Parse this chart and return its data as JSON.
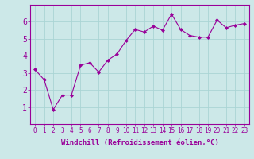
{
  "x": [
    0,
    1,
    2,
    3,
    4,
    5,
    6,
    7,
    8,
    9,
    10,
    11,
    12,
    13,
    14,
    15,
    16,
    17,
    18,
    19,
    20,
    21,
    22,
    23
  ],
  "y": [
    3.2,
    2.6,
    0.85,
    1.7,
    1.7,
    3.45,
    3.6,
    3.05,
    3.75,
    4.1,
    4.9,
    5.55,
    5.4,
    5.75,
    5.5,
    6.45,
    5.55,
    5.2,
    5.1,
    5.1,
    6.1,
    5.65,
    5.8,
    5.9
  ],
  "line_color": "#990099",
  "marker": "D",
  "marker_size": 2,
  "bg_color": "#cce8e8",
  "grid_color": "#aad4d4",
  "xlabel": "Windchill (Refroidissement éolien,°C)",
  "ylim": [
    0,
    7
  ],
  "xlim": [
    -0.5,
    23.5
  ],
  "yticks": [
    1,
    2,
    3,
    4,
    5,
    6
  ],
  "xticks": [
    0,
    1,
    2,
    3,
    4,
    5,
    6,
    7,
    8,
    9,
    10,
    11,
    12,
    13,
    14,
    15,
    16,
    17,
    18,
    19,
    20,
    21,
    22,
    23
  ],
  "xlabel_color": "#990099",
  "tick_color": "#990099",
  "axis_color": "#990099",
  "xtick_fontsize": 5.5,
  "ytick_fontsize": 7,
  "xlabel_fontsize": 6.5
}
